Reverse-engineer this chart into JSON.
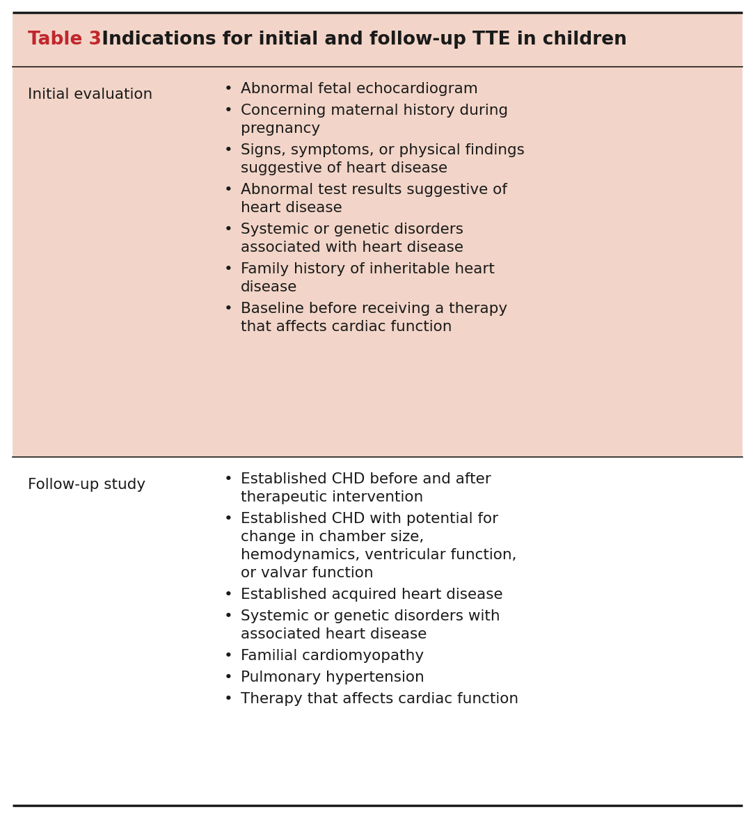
{
  "title_label": "Table 3",
  "title_label_color": "#C0272D",
  "title_rest": "  Indications for initial and follow-up TTE in children",
  "title_text_color": "#1a1a1a",
  "header_bg": "#F2D5C8",
  "row1_bg": "#F2D5C8",
  "row2_bg": "#FFFFFF",
  "outer_bg": "#FFFFFF",
  "border_color": "#1a1a1a",
  "col1_label1": "Initial evaluation",
  "col1_label2": "Follow-up study",
  "bullet_char": "•",
  "initial_bullets": [
    [
      "Abnormal fetal echocardiogram"
    ],
    [
      "Concerning maternal history during",
      "pregnancy"
    ],
    [
      "Signs, symptoms, or physical findings",
      "suggestive of heart disease"
    ],
    [
      "Abnormal test results suggestive of",
      "heart disease"
    ],
    [
      "Systemic or genetic disorders",
      "associated with heart disease"
    ],
    [
      "Family history of inheritable heart",
      "disease"
    ],
    [
      "Baseline before receiving a therapy",
      "that affects cardiac function"
    ]
  ],
  "followup_bullets": [
    [
      "Established CHD before and after",
      "therapeutic intervention"
    ],
    [
      "Established CHD with potential for",
      "change in chamber size,",
      "hemodynamics, ventricular function,",
      "or valvar function"
    ],
    [
      "Established acquired heart disease"
    ],
    [
      "Systemic or genetic disorders with",
      "associated heart disease"
    ],
    [
      "Familial cardiomyopathy"
    ],
    [
      "Pulmonary hypertension"
    ],
    [
      "Therapy that affects cardiac function"
    ]
  ],
  "font_size_title": 19,
  "font_size_body": 15.5,
  "text_color": "#1a1a1a",
  "fig_width": 10.85,
  "fig_height": 11.76,
  "dpi": 100
}
